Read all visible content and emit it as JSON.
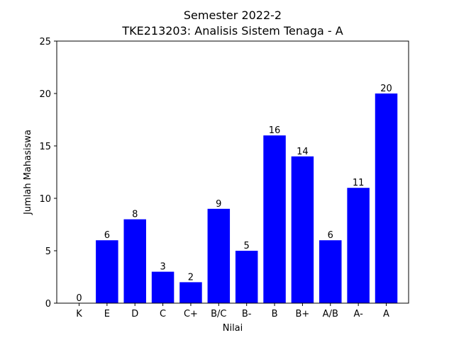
{
  "chart_data": {
    "type": "bar",
    "title": "Semester 2022-2",
    "subtitle": "TKE213203: Analisis Sistem Tenaga - A",
    "xlabel": "Nilai",
    "ylabel": "Jumlah Mahasiswa",
    "categories": [
      "K",
      "E",
      "D",
      "C",
      "C+",
      "B/C",
      "B-",
      "B",
      "B+",
      "A/B",
      "A-",
      "A"
    ],
    "values": [
      0,
      6,
      8,
      3,
      2,
      9,
      5,
      16,
      14,
      6,
      11,
      20
    ],
    "ylim": [
      0,
      25
    ],
    "yticks": [
      0,
      5,
      10,
      15,
      20,
      25
    ],
    "bar_color": "#0000ff",
    "grid": false,
    "value_labels": true
  }
}
